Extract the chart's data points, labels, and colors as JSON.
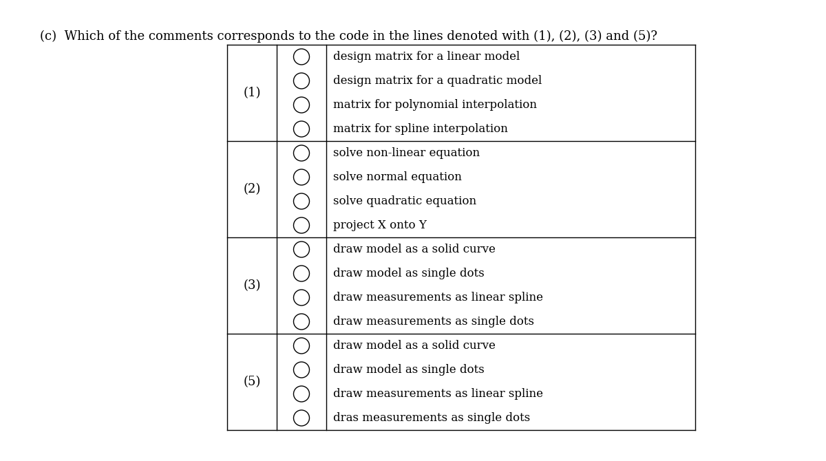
{
  "title": "(c)  Which of the comments corresponds to the code in the lines denoted with (1), (2), (3) and (5)?",
  "title_fontsize": 13,
  "background_color": "#ffffff",
  "sections": [
    {
      "label": "(1)",
      "options": [
        "design matrix for a linear model",
        "design matrix for a quadratic model",
        "matrix for polynomial interpolation",
        "matrix for spline interpolation"
      ]
    },
    {
      "label": "(2)",
      "options": [
        "solve non-linear equation",
        "solve normal equation",
        "solve quadratic equation",
        "project X onto Y"
      ]
    },
    {
      "label": "(3)",
      "options": [
        "draw model as a solid curve",
        "draw model as single dots",
        "draw measurements as linear spline",
        "draw measurements as single dots"
      ]
    },
    {
      "label": "(5)",
      "options": [
        "draw model as a solid curve",
        "draw model as single dots",
        "draw measurements as linear spline",
        "dras measurements as single dots"
      ]
    }
  ],
  "text_fontsize": 12.0,
  "label_fontsize": 13.0,
  "line_color": "#000000",
  "text_color": "#000000",
  "circle_edge_color": "#000000",
  "circle_face_color": "#ffffff",
  "circle_linewidth": 1.0
}
